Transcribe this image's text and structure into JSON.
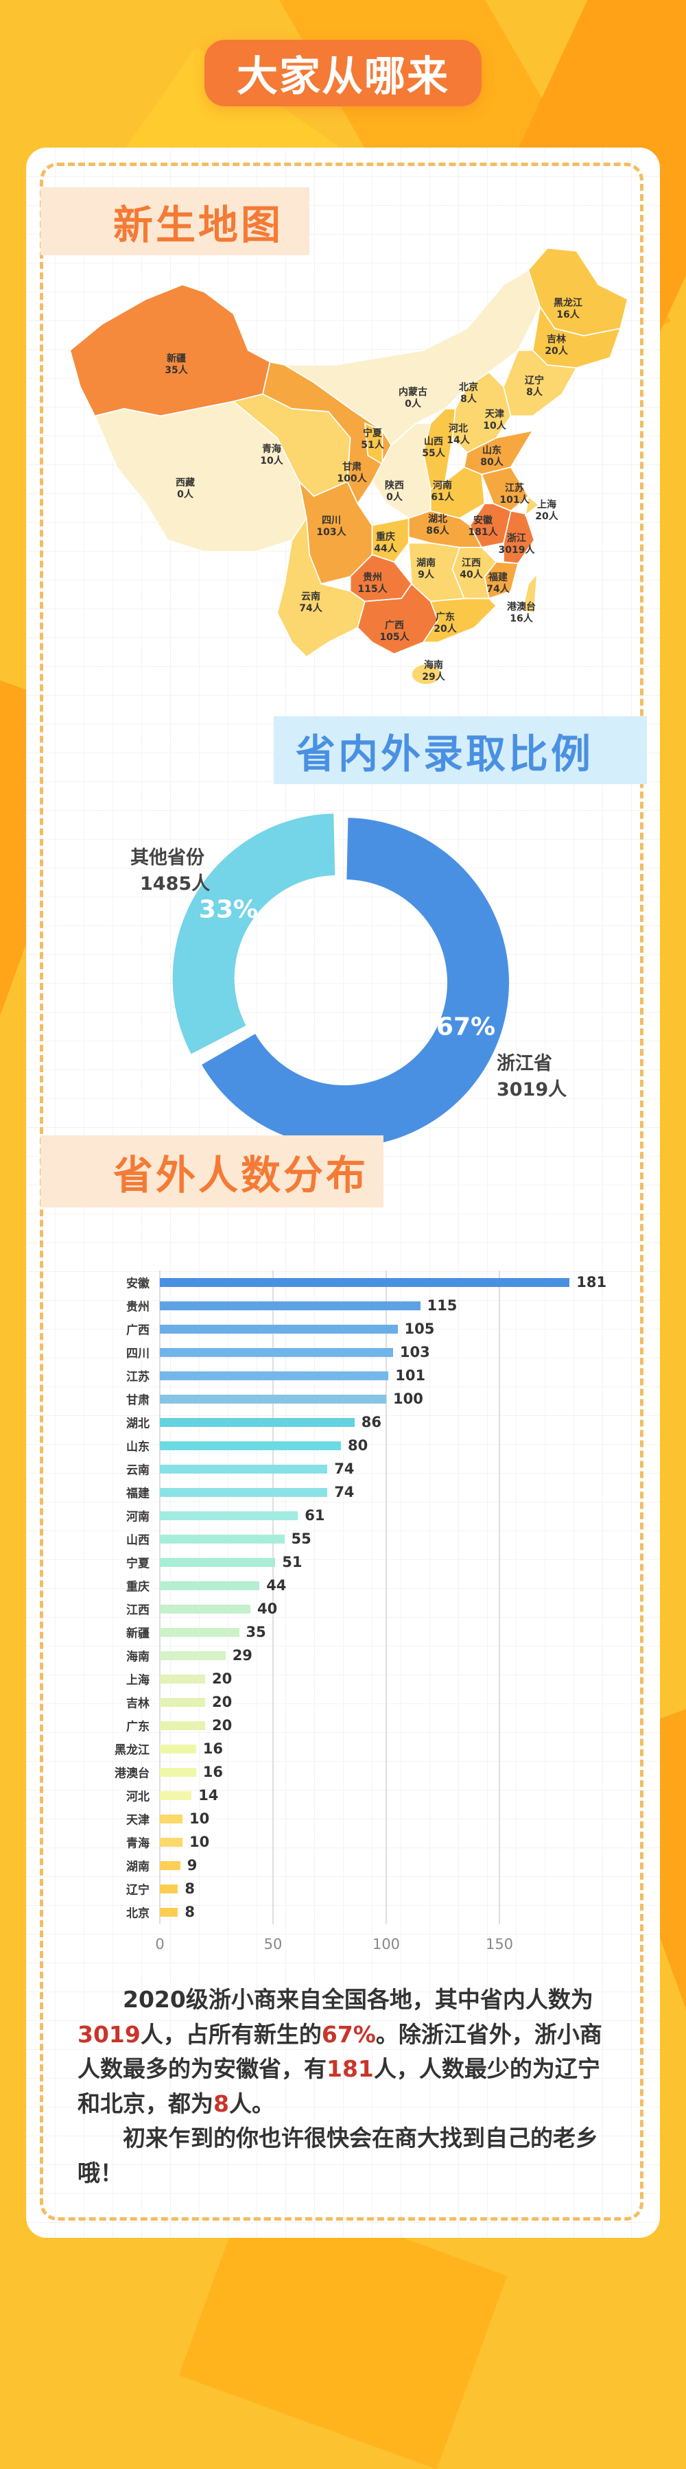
{
  "header": {
    "title": "大家从哪来"
  },
  "map_section": {
    "title": "新生地图",
    "unit": "人",
    "provinces": [
      {
        "name": "新疆",
        "count": 35
      },
      {
        "name": "西藏",
        "count": 0
      },
      {
        "name": "青海",
        "count": 10
      },
      {
        "name": "甘肃",
        "count": 100
      },
      {
        "name": "宁夏",
        "count": 51
      },
      {
        "name": "内蒙古",
        "count": 0
      },
      {
        "name": "陕西",
        "count": 0
      },
      {
        "name": "四川",
        "count": 103
      },
      {
        "name": "重庆",
        "count": 44
      },
      {
        "name": "云南",
        "count": 74
      },
      {
        "name": "贵州",
        "count": 115
      },
      {
        "name": "广西",
        "count": 105
      },
      {
        "name": "广东",
        "count": 20
      },
      {
        "name": "海南",
        "count": 29
      },
      {
        "name": "湖南",
        "count": 9
      },
      {
        "name": "湖北",
        "count": 86
      },
      {
        "name": "江西",
        "count": 40
      },
      {
        "name": "福建",
        "count": 74
      },
      {
        "name": "浙江",
        "count": 3019
      },
      {
        "name": "安徽",
        "count": 181
      },
      {
        "name": "江苏",
        "count": 101
      },
      {
        "name": "上海",
        "count": 20
      },
      {
        "name": "山东",
        "count": 80
      },
      {
        "name": "河南",
        "count": 61
      },
      {
        "name": "山西",
        "count": 55
      },
      {
        "name": "河北",
        "count": 14
      },
      {
        "name": "北京",
        "count": 8
      },
      {
        "name": "天津",
        "count": 10
      },
      {
        "name": "辽宁",
        "count": 8
      },
      {
        "name": "吉林",
        "count": 20
      },
      {
        "name": "黑龙江",
        "count": 16
      },
      {
        "name": "港澳台",
        "count": 16
      }
    ],
    "colors": {
      "darkest": "#f27b3c",
      "dark": "#f58a3c",
      "medium": "#f7a73f",
      "light": "#fbc748",
      "lighter": "#fcd66e",
      "pale": "#fcefcc"
    }
  },
  "ratio_section": {
    "title": "省内外录取比例",
    "chart_data": {
      "type": "pie",
      "slices": [
        {
          "name": "浙江省",
          "value": 3019,
          "label": "3019人",
          "percent_label": "67%",
          "color": "#4a90e2"
        },
        {
          "name": "其他省份",
          "value": 1485,
          "label": "1485人",
          "percent_label": "33%",
          "color": "#74d4e8"
        }
      ]
    }
  },
  "distribution_section": {
    "title": "省外人数分布",
    "chart_data": {
      "type": "bar",
      "orientation": "horizontal",
      "categories": [
        "安徽",
        "贵州",
        "广西",
        "四川",
        "江苏",
        "甘肃",
        "湖北",
        "山东",
        "云南",
        "福建",
        "河南",
        "山西",
        "宁夏",
        "重庆",
        "江西",
        "新疆",
        "海南",
        "上海",
        "吉林",
        "广东",
        "黑龙江",
        "港澳台",
        "河北",
        "天津",
        "青海",
        "湖南",
        "辽宁",
        "北京"
      ],
      "values": [
        181,
        115,
        105,
        103,
        101,
        100,
        86,
        80,
        74,
        74,
        61,
        55,
        51,
        44,
        40,
        35,
        29,
        20,
        20,
        20,
        16,
        16,
        14,
        10,
        10,
        9,
        8,
        8
      ],
      "colors": [
        "#4a90e2",
        "#5ea2e6",
        "#6aaee8",
        "#70b4ea",
        "#74b8ea",
        "#86c4e6",
        "#64d2e0",
        "#6cdae4",
        "#86e0e6",
        "#8ae2e6",
        "#a2ebe2",
        "#a6edda",
        "#a8edd6",
        "#b4efd2",
        "#c4f0cc",
        "#cdf2c8",
        "#d6f2c6",
        "#e2f2b8",
        "#e4f2b4",
        "#e6f4b0",
        "#eef7a8",
        "#f0f7a8",
        "#f2f7ac",
        "#fdd86a",
        "#fdd86a",
        "#fdd055",
        "#fccd50",
        "#fccd50"
      ],
      "x_ticks": [
        0,
        50,
        100,
        150
      ],
      "xlim": [
        0,
        190
      ],
      "grid": true
    }
  },
  "summary": {
    "p1": [
      {
        "text": "2020级浙小商来自全国各地，其中省内人数为",
        "highlight": false
      },
      {
        "text": "3019",
        "highlight": true
      },
      {
        "text": "人，占所有新生的",
        "highlight": false
      },
      {
        "text": "67%",
        "highlight": true
      },
      {
        "text": "。除浙江省外，浙小商人数最多的为安徽省，有",
        "highlight": false
      },
      {
        "text": "181",
        "highlight": true
      },
      {
        "text": "人，人数最少的为辽宁和北京，都为",
        "highlight": false
      },
      {
        "text": "8",
        "highlight": true
      },
      {
        "text": "人。",
        "highlight": false
      }
    ],
    "p2": "初来乍到的你也许很快会在商大找到自己的老乡哦！",
    "highlight_color": "#c9352b"
  }
}
